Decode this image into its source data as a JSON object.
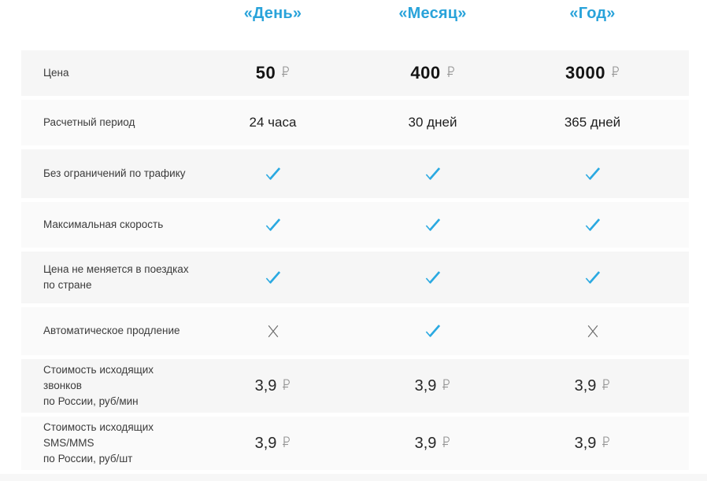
{
  "colors": {
    "accent_blue": "#29a3da",
    "check_blue": "#2aa9e1",
    "cross_gray": "#6d6d6d",
    "row_bg_odd": "#f6f6f6",
    "row_bg_even": "#fafafa",
    "ruble_gray": "#949494"
  },
  "currency_symbol": "₽",
  "icons": {
    "check": "check-icon",
    "cross": "cross-icon",
    "ruble": "ruble-icon"
  },
  "table": {
    "header": {
      "columns": [
        "«День»",
        "«Месяц»",
        "«Год»"
      ]
    },
    "rows": [
      {
        "label": "Цена",
        "type": "price",
        "values": [
          "50",
          "400",
          "3000"
        ]
      },
      {
        "label": "Расчетный период",
        "type": "text",
        "values": [
          "24 часа",
          "30 дней",
          "365 дней"
        ]
      },
      {
        "label": "Без ограничений по трафику",
        "type": "mark",
        "values": [
          "check",
          "check",
          "check"
        ]
      },
      {
        "label": "Максимальная скорость",
        "type": "mark",
        "values": [
          "check",
          "check",
          "check"
        ]
      },
      {
        "label": "Цена не меняется в поездках\nпо стране",
        "type": "mark",
        "values": [
          "check",
          "check",
          "check"
        ]
      },
      {
        "label": "Автоматическое продление",
        "type": "mark",
        "values": [
          "cross",
          "check",
          "cross"
        ]
      },
      {
        "label": "Стоимость исходящих звонков\nпо России, руб/мин",
        "type": "price-small",
        "values": [
          "3,9",
          "3,9",
          "3,9"
        ]
      },
      {
        "label": "Стоимость исходящих SMS/MMS\nпо России, руб/шт",
        "type": "price-small",
        "values": [
          "3,9",
          "3,9",
          "3,9"
        ]
      }
    ]
  }
}
